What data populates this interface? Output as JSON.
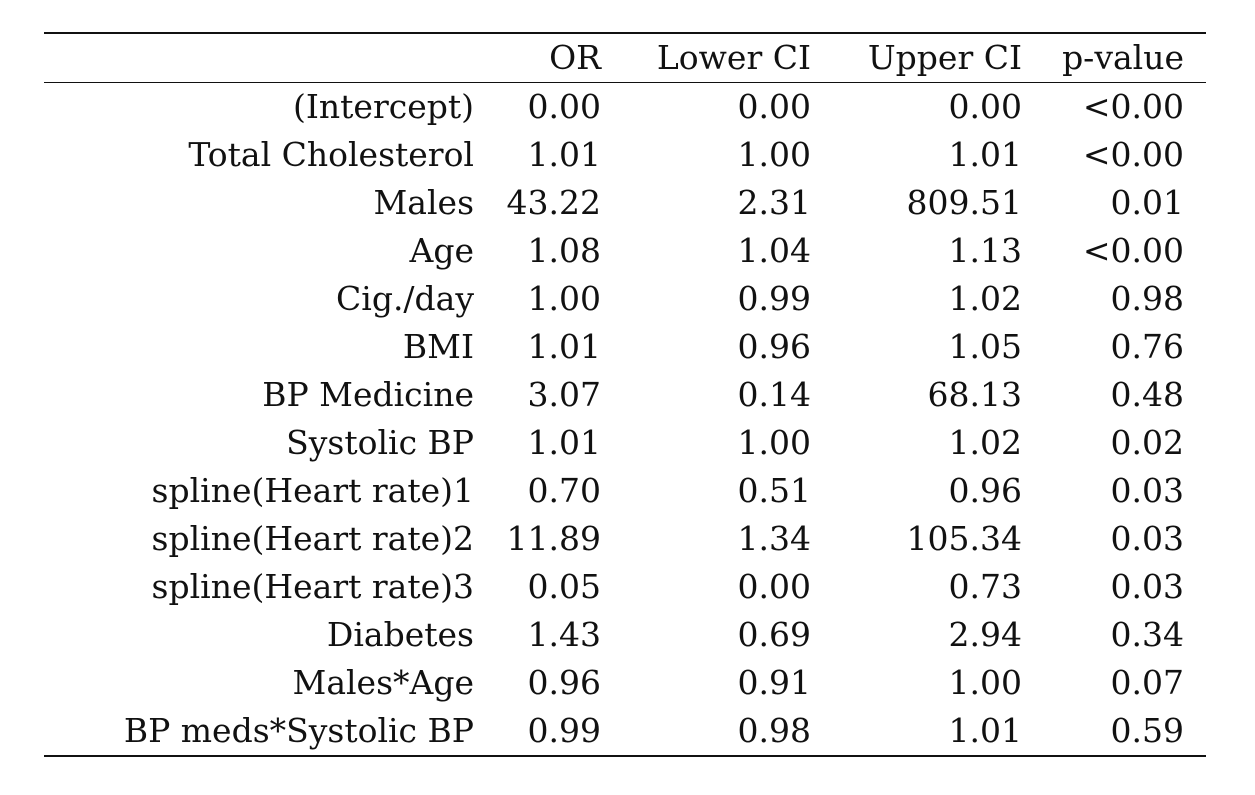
{
  "table": {
    "columns": [
      "",
      "OR",
      "Lower CI",
      "Upper CI",
      "p-value"
    ],
    "rows": [
      [
        "(Intercept)",
        "0.00",
        "0.00",
        "0.00",
        "<0.00"
      ],
      [
        "Total Cholesterol",
        "1.01",
        "1.00",
        "1.01",
        "<0.00"
      ],
      [
        "Males",
        "43.22",
        "2.31",
        "809.51",
        "0.01"
      ],
      [
        "Age",
        "1.08",
        "1.04",
        "1.13",
        "<0.00"
      ],
      [
        "Cig./day",
        "1.00",
        "0.99",
        "1.02",
        "0.98"
      ],
      [
        "BMI",
        "1.01",
        "0.96",
        "1.05",
        "0.76"
      ],
      [
        "BP Medicine",
        "3.07",
        "0.14",
        "68.13",
        "0.48"
      ],
      [
        "Systolic BP",
        "1.01",
        "1.00",
        "1.02",
        "0.02"
      ],
      [
        "spline(Heart rate)1",
        "0.70",
        "0.51",
        "0.96",
        "0.03"
      ],
      [
        "spline(Heart rate)2",
        "11.89",
        "1.34",
        "105.34",
        "0.03"
      ],
      [
        "spline(Heart rate)3",
        "0.05",
        "0.00",
        "0.73",
        "0.03"
      ],
      [
        "Diabetes",
        "1.43",
        "0.69",
        "2.94",
        "0.34"
      ],
      [
        "Males*Age",
        "0.96",
        "0.91",
        "1.00",
        "0.07"
      ],
      [
        "BP meds*Systolic BP",
        "0.99",
        "0.98",
        "1.01",
        "0.59"
      ]
    ]
  }
}
